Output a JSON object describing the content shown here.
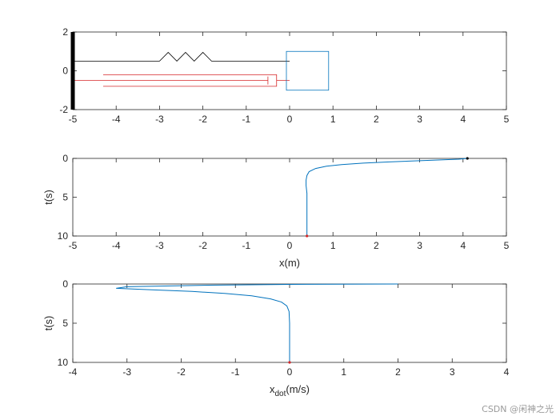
{
  "chart_data": [
    {
      "type": "diagram",
      "name": "mass-spring-damper animation frame",
      "xlim": [
        -5,
        5
      ],
      "ylim": [
        -2,
        2
      ],
      "xticks": [
        "-5",
        "-4",
        "-3",
        "-2",
        "-1",
        "0",
        "1",
        "2",
        "3",
        "4",
        "5"
      ],
      "yticks": [
        "2",
        "0",
        "-2"
      ],
      "wall": {
        "x": -5,
        "y_range": [
          -2,
          2
        ],
        "color": "#000000"
      },
      "spring": {
        "x_start": -5,
        "x_end": 0,
        "y": 0.5,
        "coil_x_range": [
          -3,
          -1.8
        ],
        "amplitude": 0.45,
        "color": "#000000"
      },
      "damper": {
        "x_start": -5,
        "x_end": 0,
        "y": -0.5,
        "rod_x_start": -4.3,
        "rod_x_end": -0.3,
        "piston_x": -0.5,
        "outer_y": [
          -0.2,
          -0.8
        ],
        "color": "#d62728"
      },
      "mass": {
        "x": 0,
        "y": -1,
        "width": 0.9,
        "height": 2,
        "color": "#0072bd"
      },
      "xlabel": "",
      "ylabel": ""
    },
    {
      "type": "line",
      "xlim": [
        -5,
        5
      ],
      "ylim": [
        0,
        10
      ],
      "y_reversed": true,
      "xticks": [
        "-5",
        "-4",
        "-3",
        "-2",
        "-1",
        "0",
        "1",
        "2",
        "3",
        "4",
        "5"
      ],
      "yticks": [
        "0",
        "5",
        "10"
      ],
      "xlabel": "x(m)",
      "ylabel": "t(s)",
      "series": [
        {
          "color": "#0072bd",
          "points": [
            [
              4.1,
              0
            ],
            [
              3.9,
              0.1
            ],
            [
              3.0,
              0.3
            ],
            [
              2.3,
              0.45
            ],
            [
              1.7,
              0.6
            ],
            [
              1.2,
              0.8
            ],
            [
              0.85,
              1.0
            ],
            [
              0.6,
              1.3
            ],
            [
              0.45,
              1.7
            ],
            [
              0.4,
              2.2
            ],
            [
              0.38,
              2.8
            ],
            [
              0.38,
              3.5
            ],
            [
              0.4,
              4.5
            ],
            [
              0.4,
              6
            ],
            [
              0.4,
              8
            ],
            [
              0.4,
              10
            ]
          ]
        }
      ],
      "markers": [
        {
          "x": 4.1,
          "y": 0,
          "color": "#000000"
        },
        {
          "x": 0.4,
          "y": 10,
          "color": "#d62728"
        }
      ]
    },
    {
      "type": "line",
      "xlim": [
        -4,
        4
      ],
      "ylim": [
        0,
        10
      ],
      "y_reversed": true,
      "xticks": [
        "-4",
        "-3",
        "-2",
        "-1",
        "0",
        "1",
        "2",
        "3",
        "4"
      ],
      "yticks": [
        "0",
        "5",
        "10"
      ],
      "xlabel": "x",
      "xlabel_sub": "dot",
      "xlabel_suffix": "(m/s)",
      "ylabel": "t(s)",
      "series": [
        {
          "color": "#0072bd",
          "points": [
            [
              2.0,
              0
            ],
            [
              0.0,
              0.05
            ],
            [
              -1.5,
              0.15
            ],
            [
              -3.0,
              0.35
            ],
            [
              -3.2,
              0.55
            ],
            [
              -2.5,
              0.75
            ],
            [
              -1.8,
              0.95
            ],
            [
              -1.2,
              1.2
            ],
            [
              -0.7,
              1.5
            ],
            [
              -0.35,
              1.9
            ],
            [
              -0.15,
              2.3
            ],
            [
              -0.05,
              2.8
            ],
            [
              -0.01,
              3.5
            ],
            [
              0.0,
              5
            ],
            [
              0.0,
              7
            ],
            [
              0.0,
              10
            ]
          ]
        }
      ],
      "markers": [
        {
          "x": 0.0,
          "y": 10,
          "color": "#d62728"
        }
      ]
    }
  ],
  "watermark": "CSDN @闲神之光"
}
